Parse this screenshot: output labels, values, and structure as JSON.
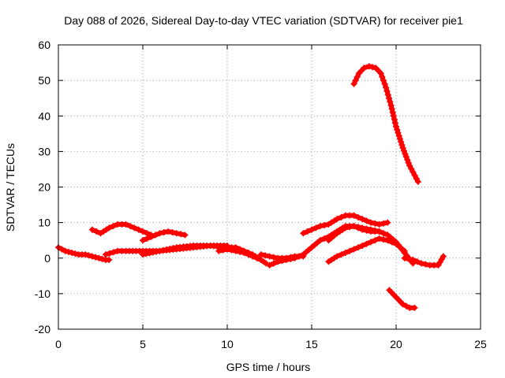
{
  "chart_data": {
    "type": "scatter",
    "title": "Day 088 of 2026, Sidereal Day-to-day VTEC variation (SDTVAR) for receiver pie1",
    "xlabel": "GPS time / hours",
    "ylabel": "SDTVAR / TECUs",
    "xlim": [
      0,
      25
    ],
    "ylim": [
      -20,
      60
    ],
    "xticks": [
      0,
      5,
      10,
      15,
      20,
      25
    ],
    "yticks": [
      -20,
      -10,
      0,
      10,
      20,
      30,
      40,
      50,
      60
    ],
    "grid": true,
    "marker": "+",
    "series_color": "#ff0000",
    "series": [
      {
        "name": "arc-1",
        "x": [
          0.0,
          0.4,
          0.8,
          1.2,
          1.6,
          2.0,
          2.4,
          2.8,
          3.0
        ],
        "y": [
          3,
          2,
          1.5,
          1,
          1,
          0.5,
          0,
          -0.5,
          -0.5
        ]
      },
      {
        "name": "arc-2",
        "x": [
          2.0,
          2.5,
          3.0,
          3.5,
          4.0,
          4.5,
          5.0,
          5.5
        ],
        "y": [
          8,
          7,
          8.5,
          9.5,
          9.5,
          8.5,
          7.5,
          6.5
        ]
      },
      {
        "name": "arc-3",
        "x": [
          5.0,
          5.5,
          6.0,
          6.5,
          7.0,
          7.5
        ],
        "y": [
          5,
          6,
          7,
          7.5,
          7,
          6.5
        ]
      },
      {
        "name": "arc-4",
        "x": [
          2.8,
          3.5,
          4.0,
          5.0,
          6.0,
          7.0,
          8.0,
          9.0,
          10.0
        ],
        "y": [
          1,
          2,
          2,
          2,
          2,
          2.5,
          3,
          3.5,
          3.5
        ]
      },
      {
        "name": "arc-5",
        "x": [
          5.0,
          6.0,
          7.0,
          8.0,
          9.0,
          10.0
        ],
        "y": [
          1,
          2,
          3,
          3.5,
          3.5,
          3
        ]
      },
      {
        "name": "arc-6",
        "x": [
          10.0,
          10.5,
          11.0,
          11.5,
          12.0,
          12.3
        ],
        "y": [
          3,
          3,
          2,
          1,
          -0.5,
          -1.5
        ]
      },
      {
        "name": "arc-7",
        "x": [
          9.5,
          10.0,
          10.5,
          11.0,
          11.5,
          12.0
        ],
        "y": [
          2,
          2.5,
          2,
          1.5,
          0.5,
          -0.5
        ]
      },
      {
        "name": "arc-8",
        "x": [
          12.0,
          12.5,
          13.0,
          13.5,
          14.0,
          14.5
        ],
        "y": [
          1,
          0.5,
          0,
          0,
          0.5,
          0.5
        ]
      },
      {
        "name": "arc-9",
        "x": [
          12.5,
          13.0,
          13.5,
          14.0,
          14.5,
          15.0,
          15.5,
          16.0,
          16.5,
          17.0,
          17.5,
          18.0,
          18.5,
          19.0
        ],
        "y": [
          -2,
          -1,
          -0.5,
          0,
          1,
          3,
          5,
          6,
          7.5,
          9,
          9,
          8.5,
          8,
          7.5
        ]
      },
      {
        "name": "arc-10",
        "x": [
          14.5,
          15.0,
          15.5,
          16.0,
          16.5,
          17.0,
          17.5,
          18.0,
          18.5,
          19.0,
          19.5
        ],
        "y": [
          7,
          8,
          9,
          9.5,
          11,
          12,
          12,
          11,
          10,
          9.5,
          10
        ]
      },
      {
        "name": "arc-11",
        "x": [
          16.0,
          16.5,
          17.0,
          17.5,
          18.0,
          18.5,
          19.0,
          19.5,
          20.0,
          20.5,
          21.0
        ],
        "y": [
          5,
          7,
          8.5,
          9,
          8,
          7.5,
          7.5,
          6.5,
          4.5,
          1.5,
          -1.5
        ]
      },
      {
        "name": "arc-12",
        "x": [
          16.0,
          16.5,
          17.0,
          17.5,
          18.0,
          18.5,
          19.0,
          19.5,
          20.0,
          20.5
        ],
        "y": [
          -1,
          0.5,
          1.5,
          2.5,
          3.5,
          4.5,
          5.5,
          5,
          4,
          2
        ]
      },
      {
        "name": "arc-13",
        "x": [
          20.5,
          21.0,
          21.5,
          22.0,
          22.5,
          22.8
        ],
        "y": [
          0,
          -0.5,
          -1.5,
          -2,
          -2,
          0.5
        ]
      },
      {
        "name": "arc-14",
        "x": [
          17.5,
          17.8,
          18.1,
          18.4,
          18.8,
          19.1,
          19.4,
          19.7,
          20.0,
          20.4,
          20.8,
          21.3
        ],
        "y": [
          49,
          52,
          53.5,
          54,
          53.5,
          52,
          48,
          43,
          37,
          31,
          26,
          21.5
        ]
      },
      {
        "name": "arc-15",
        "x": [
          19.6,
          20.0,
          20.4,
          20.8,
          21.1
        ],
        "y": [
          -9,
          -11,
          -13,
          -14,
          -14
        ]
      }
    ]
  }
}
